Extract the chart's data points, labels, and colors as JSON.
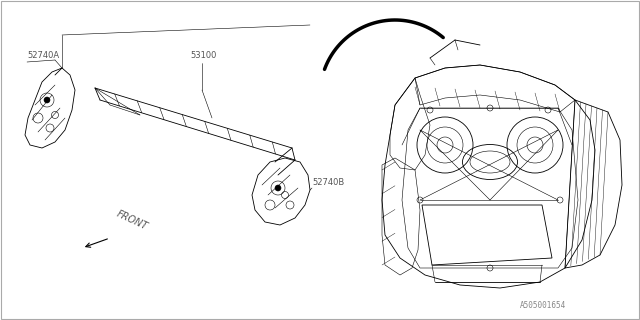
{
  "background_color": "#ffffff",
  "border_color": "#cccccc",
  "text_color": "#000000",
  "label_color": "#555555",
  "label_52740A": "52740A",
  "label_53100": "53100",
  "label_52740B": "52740B",
  "label_front": "FRONT",
  "label_watermark": "A505001654",
  "fig_width": 6.4,
  "fig_height": 3.2,
  "dpi": 100
}
